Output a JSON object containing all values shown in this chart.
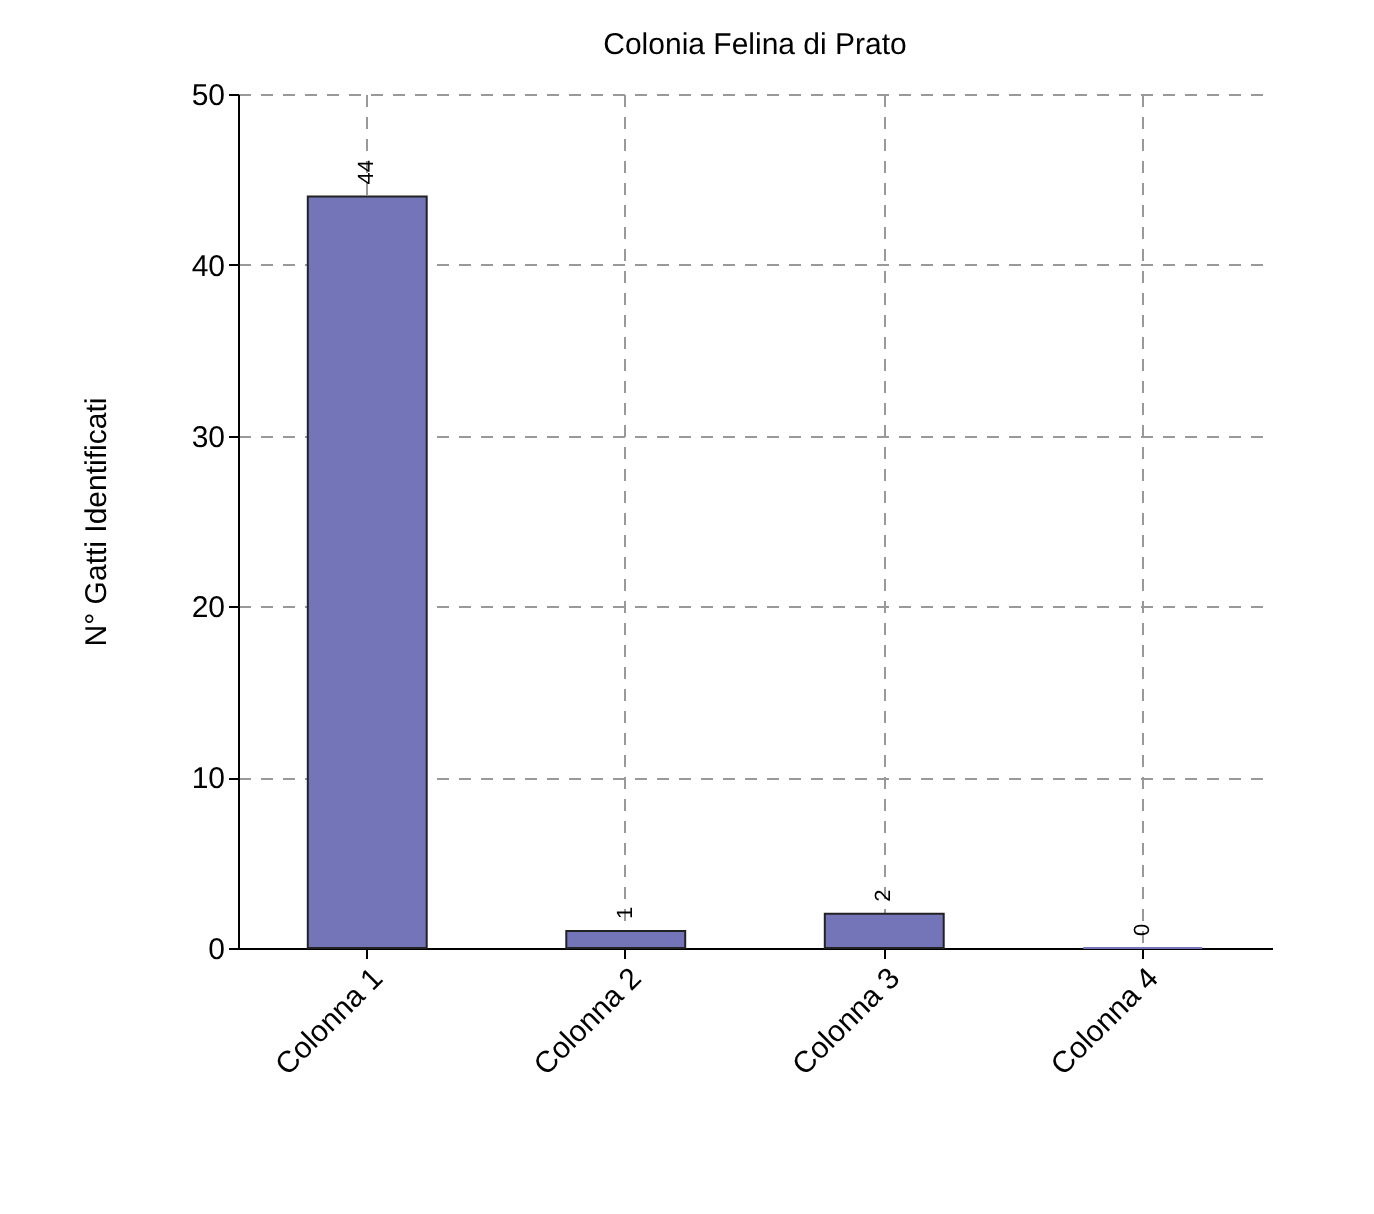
{
  "chart_data": {
    "type": "bar",
    "title": "Colonia Felina di Prato",
    "ylabel": "N° Gatti Identificati",
    "categories": [
      "Colonna 1",
      "Colonna 2",
      "Colonna 3",
      "Colonna 4"
    ],
    "values": [
      44,
      1,
      2,
      0
    ],
    "color": "#7474b8",
    "ylim": [
      0,
      50
    ],
    "yticks": [
      0,
      10,
      20,
      30,
      40,
      50
    ],
    "grid": true,
    "data_labels": true
  }
}
